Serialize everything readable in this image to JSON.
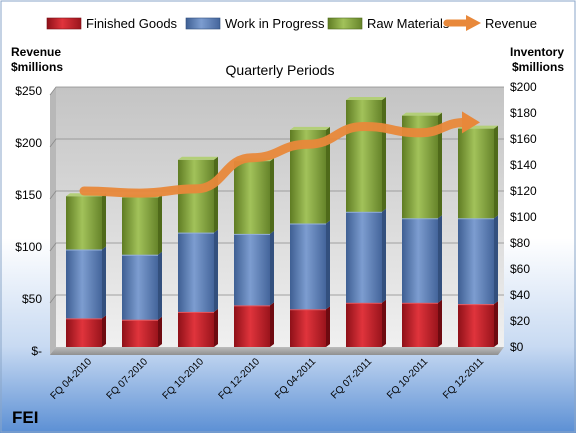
{
  "brand": "FEI",
  "colors": {
    "finished_goods": "#c0202a",
    "work_in_progress": "#5b7db6",
    "raw_materials": "#85a53c",
    "revenue": "#e8883a"
  },
  "chart_data": {
    "type": "bar",
    "stacked": true,
    "title": "Quarterly Periods",
    "left_axis_label": [
      "Revenue",
      "$millions"
    ],
    "right_axis_label": [
      "Inventory",
      "$millions"
    ],
    "categories": [
      "FQ 04-2010",
      "FQ 07-2010",
      "FQ 10-2010",
      "FQ 12-2010",
      "FQ 04-2011",
      "FQ 07-2011",
      "FQ 10-2011",
      "FQ 12-2011"
    ],
    "legend_position": "top",
    "grid": true,
    "right_axis": {
      "ylim": [
        0,
        200
      ],
      "ticks": [
        0,
        20,
        40,
        60,
        80,
        100,
        120,
        140,
        160,
        180,
        200
      ],
      "tick_labels": [
        "$0",
        "$20",
        "$40",
        "$60",
        "$80",
        "$100",
        "$120",
        "$140",
        "$160",
        "$180",
        "$200"
      ]
    },
    "left_axis": {
      "ylim": [
        0,
        250
      ],
      "ticks": [
        0,
        50,
        100,
        150,
        200,
        250
      ],
      "tick_labels": [
        "$-",
        "$50",
        "$100",
        "$150",
        "$200",
        "$250"
      ]
    },
    "series": [
      {
        "name": "Finished Goods",
        "axis": "right",
        "values": [
          22,
          21,
          27,
          32,
          29,
          34,
          34,
          33
        ]
      },
      {
        "name": "Work in Progress",
        "axis": "right",
        "values": [
          53,
          50,
          61,
          55,
          66,
          70,
          65,
          66
        ]
      },
      {
        "name": "Raw Materials",
        "axis": "right",
        "values": [
          41,
          44,
          56,
          56,
          72,
          86,
          79,
          69
        ]
      },
      {
        "name": "Revenue",
        "axis": "left",
        "type": "line",
        "values": [
          150,
          148,
          152,
          182,
          195,
          212,
          206,
          216
        ]
      }
    ]
  }
}
